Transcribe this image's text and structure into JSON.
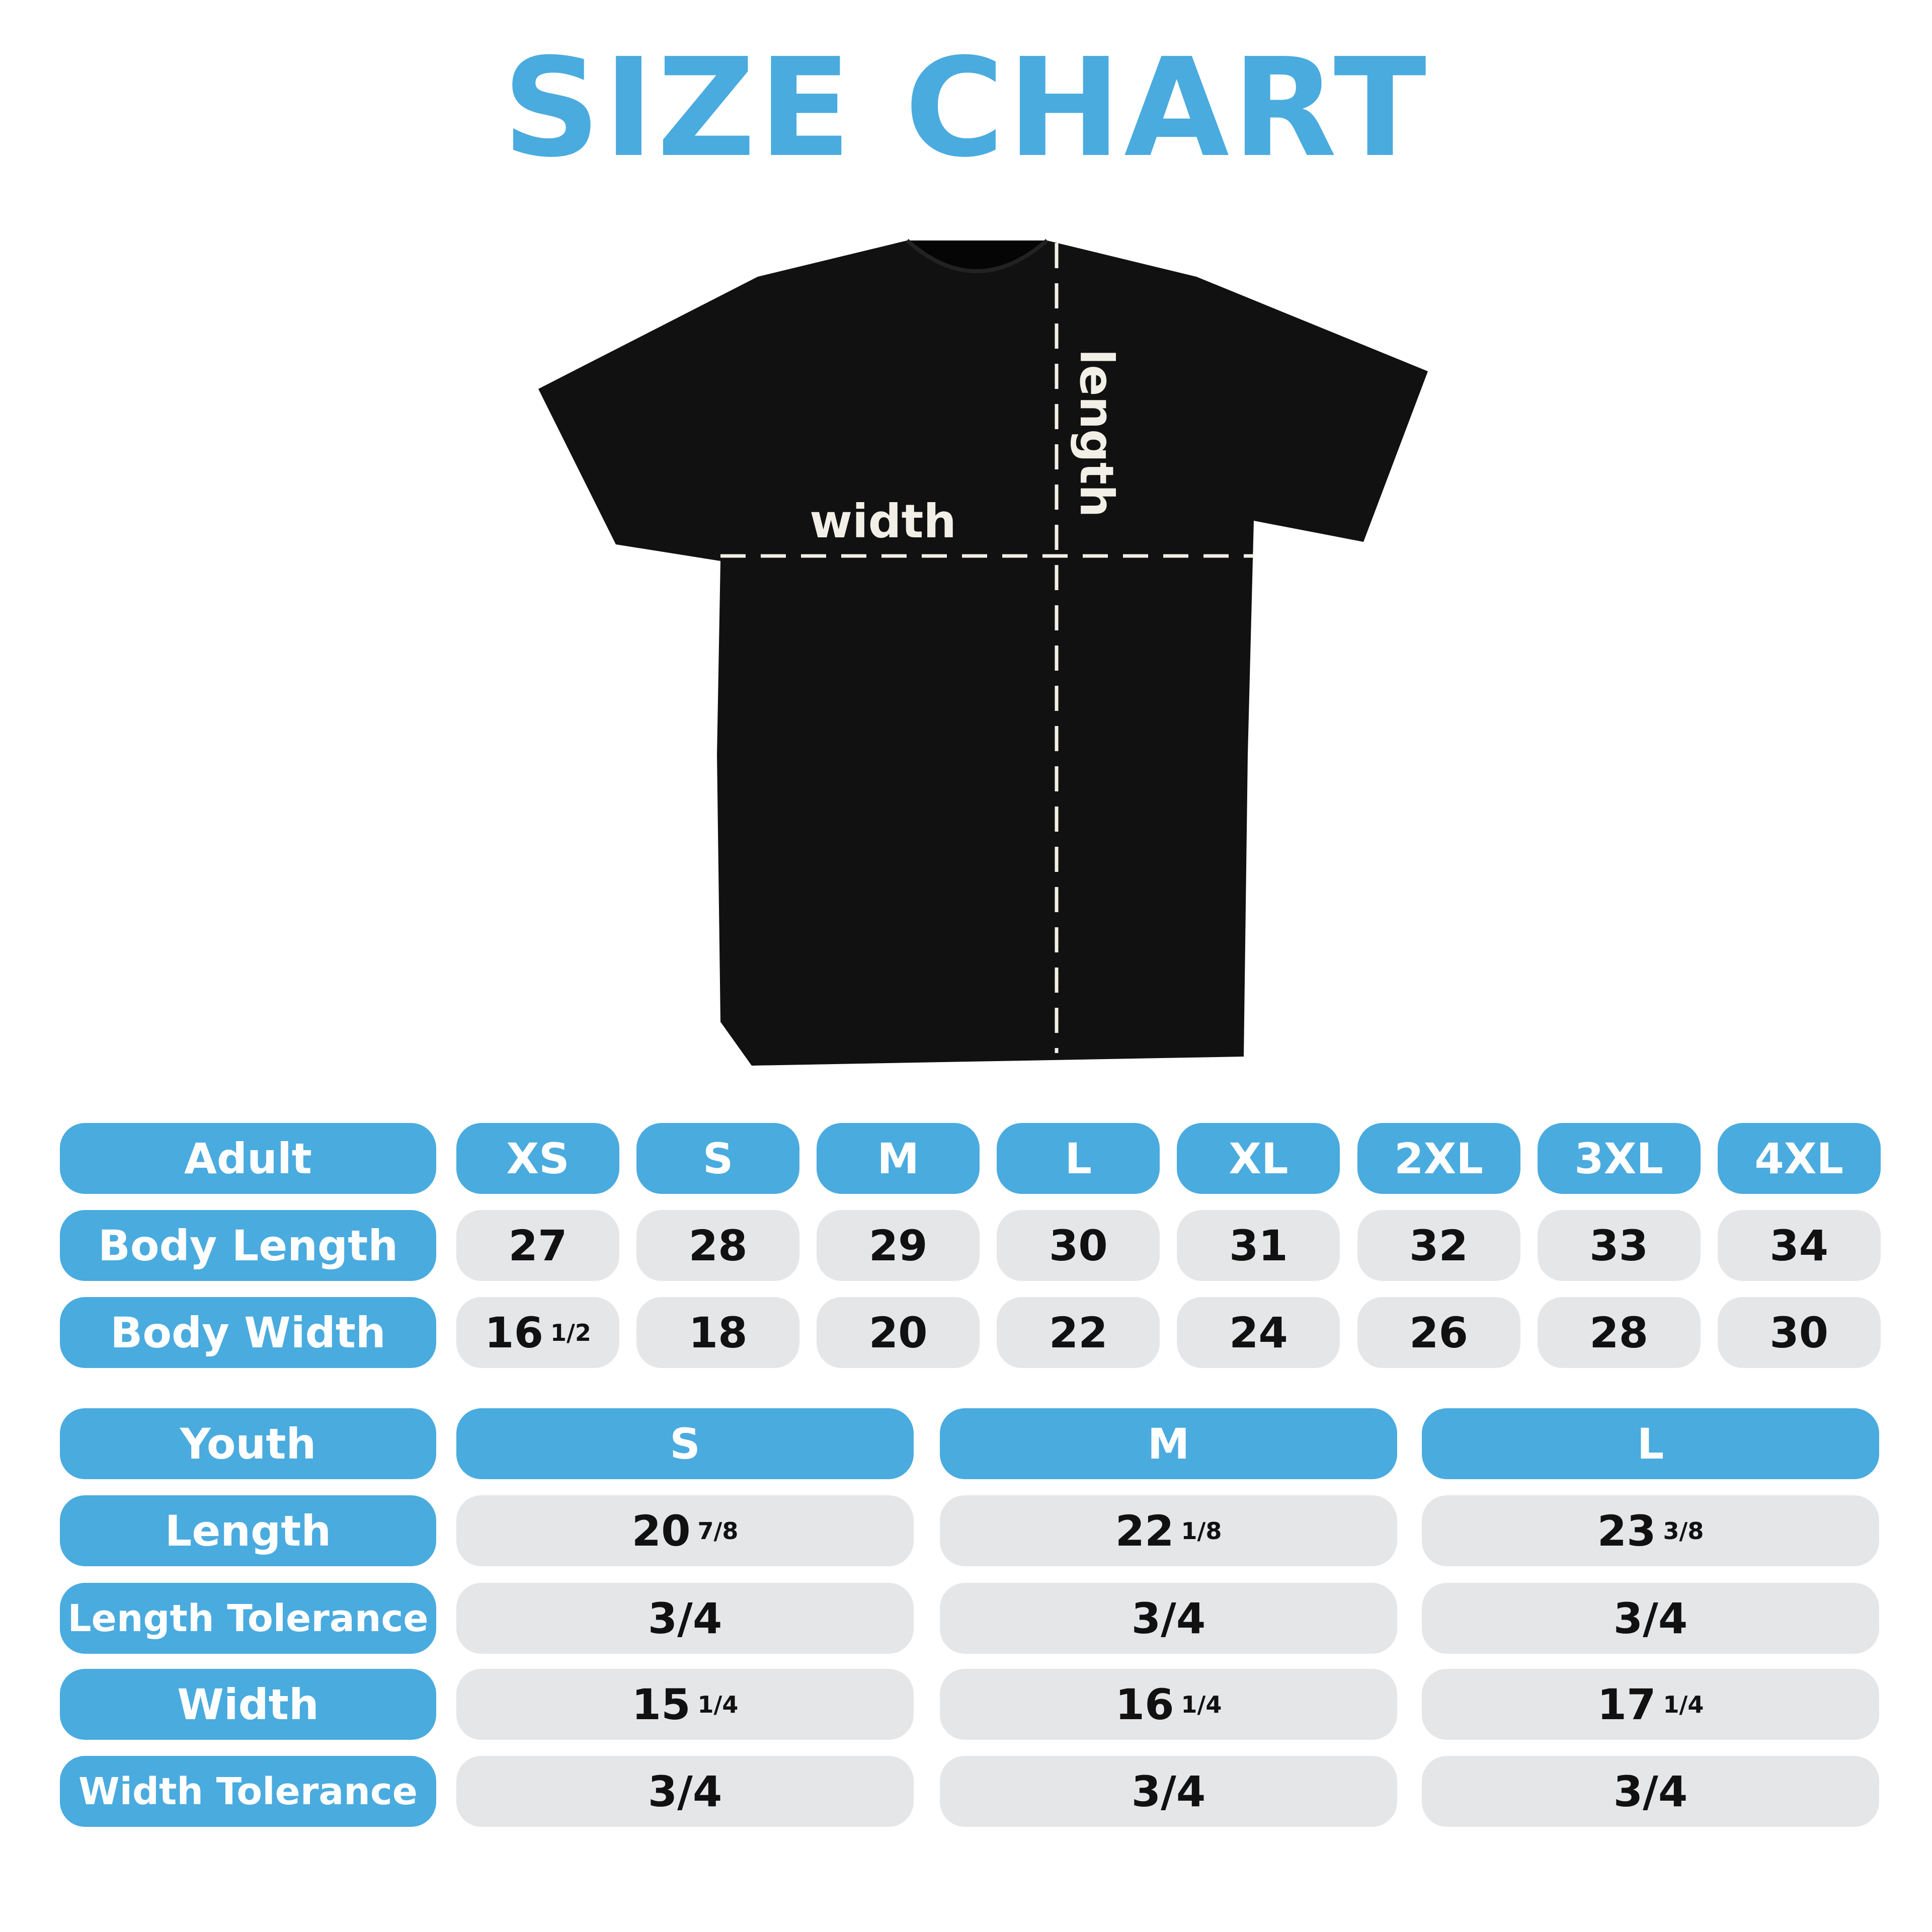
{
  "title": "SIZE CHART",
  "shirt": {
    "width_label": "width",
    "length_label": "length",
    "shirt_color": "#111111"
  },
  "colors": {
    "accent": "#4aabdf",
    "cell": "#e5e6e8"
  },
  "adult": {
    "header": "Adult",
    "sizes": [
      "XS",
      "S",
      "M",
      "L",
      "XL",
      "2XL",
      "3XL",
      "4XL"
    ],
    "rows": [
      {
        "label": "Body Length",
        "values": [
          {
            "v": "27"
          },
          {
            "v": "28"
          },
          {
            "v": "29"
          },
          {
            "v": "30"
          },
          {
            "v": "31"
          },
          {
            "v": "32"
          },
          {
            "v": "33"
          },
          {
            "v": "34"
          }
        ]
      },
      {
        "label": "Body Width",
        "values": [
          {
            "v": "16",
            "f": "1/2"
          },
          {
            "v": "18"
          },
          {
            "v": "20"
          },
          {
            "v": "22"
          },
          {
            "v": "24"
          },
          {
            "v": "26"
          },
          {
            "v": "28"
          },
          {
            "v": "30"
          }
        ]
      }
    ]
  },
  "youth": {
    "header": "Youth",
    "sizes": [
      "S",
      "M",
      "L"
    ],
    "rows": [
      {
        "label": "Length",
        "values": [
          {
            "v": "20",
            "f": "7/8"
          },
          {
            "v": "22",
            "f": "1/8"
          },
          {
            "v": "23",
            "f": "3/8"
          }
        ]
      },
      {
        "label": "Length Tolerance",
        "values": [
          {
            "v": "3/4"
          },
          {
            "v": "3/4"
          },
          {
            "v": "3/4"
          }
        ]
      },
      {
        "label": "Width",
        "values": [
          {
            "v": "15",
            "f": "1/4"
          },
          {
            "v": "16",
            "f": "1/4"
          },
          {
            "v": "17",
            "f": "1/4"
          }
        ]
      },
      {
        "label": "Width Tolerance",
        "values": [
          {
            "v": "3/4"
          },
          {
            "v": "3/4"
          },
          {
            "v": "3/4"
          }
        ]
      }
    ]
  }
}
